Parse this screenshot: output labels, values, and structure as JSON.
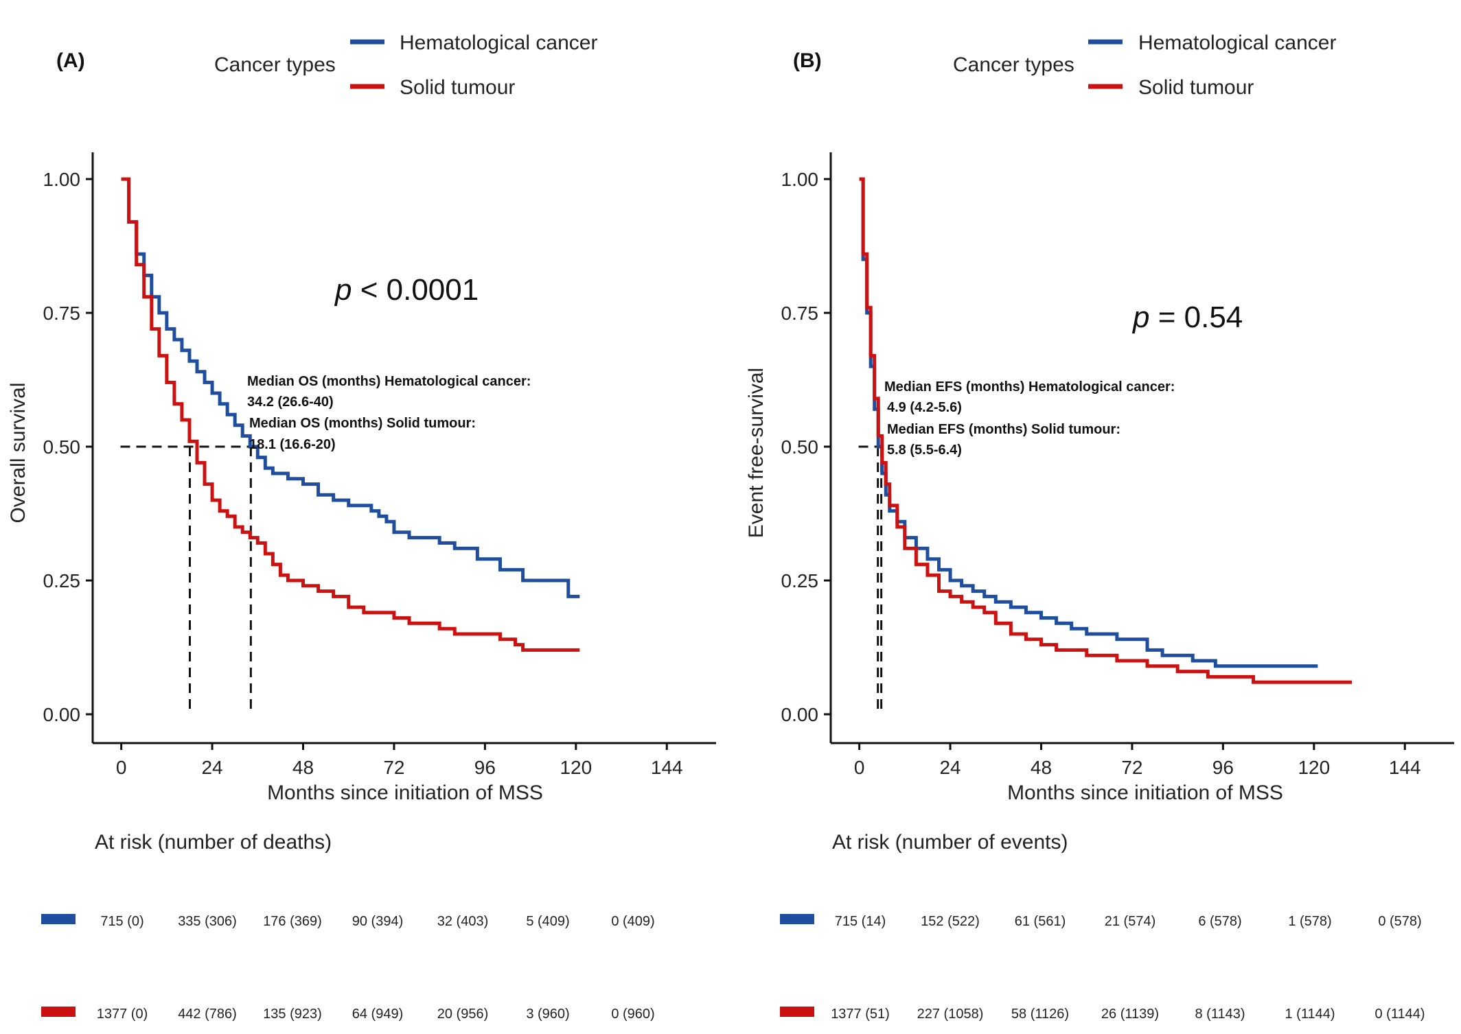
{
  "colors": {
    "hematological": "#1f4e9e",
    "solid": "#cc1111",
    "axis": "#111111",
    "median_line": "#111111"
  },
  "chart_data": [
    {
      "type": "line",
      "panel_label": "(A)",
      "legend_title": "Cancer types",
      "legend_position": "top",
      "xlabel": "Months since initiation of MSS",
      "ylabel": "Overall survival",
      "xticks": [
        0,
        24,
        48,
        72,
        96,
        120,
        144
      ],
      "yticks": [
        "0.00",
        "0.25",
        "0.50",
        "0.75",
        "1.00"
      ],
      "xlim": [
        -7,
        157
      ],
      "ylim": [
        -0.05,
        1.05
      ],
      "p_value": {
        "prefix": "p",
        "rest": " < 0.0001"
      },
      "annotation_lines": [
        "Median OS (months) Hematological cancer:",
        "34.2 (26.6-40)",
        "Median OS (months) Solid tumour:",
        "18.1 (16.6-20)"
      ],
      "medians": [
        34.2,
        18.1
      ],
      "series": [
        {
          "name": "Hematological cancer",
          "color_key": "hematological",
          "points": [
            [
              0,
              1.0
            ],
            [
              2,
              0.92
            ],
            [
              4,
              0.86
            ],
            [
              6,
              0.82
            ],
            [
              8,
              0.78
            ],
            [
              10,
              0.75
            ],
            [
              12,
              0.72
            ],
            [
              14,
              0.7
            ],
            [
              16,
              0.68
            ],
            [
              18,
              0.66
            ],
            [
              20,
              0.64
            ],
            [
              22,
              0.62
            ],
            [
              24,
              0.6
            ],
            [
              26,
              0.58
            ],
            [
              28,
              0.56
            ],
            [
              30,
              0.54
            ],
            [
              32,
              0.52
            ],
            [
              34,
              0.5
            ],
            [
              36,
              0.48
            ],
            [
              38,
              0.46
            ],
            [
              40,
              0.45
            ],
            [
              44,
              0.44
            ],
            [
              48,
              0.43
            ],
            [
              52,
              0.41
            ],
            [
              56,
              0.4
            ],
            [
              60,
              0.39
            ],
            [
              64,
              0.39
            ],
            [
              66,
              0.38
            ],
            [
              68,
              0.37
            ],
            [
              70,
              0.36
            ],
            [
              72,
              0.34
            ],
            [
              76,
              0.33
            ],
            [
              80,
              0.33
            ],
            [
              84,
              0.32
            ],
            [
              88,
              0.31
            ],
            [
              92,
              0.31
            ],
            [
              94,
              0.29
            ],
            [
              98,
              0.29
            ],
            [
              100,
              0.27
            ],
            [
              104,
              0.27
            ],
            [
              106,
              0.25
            ],
            [
              110,
              0.25
            ],
            [
              112,
              0.25
            ],
            [
              115,
              0.25
            ],
            [
              118,
              0.22
            ],
            [
              121,
              0.22
            ]
          ]
        },
        {
          "name": "Solid tumour",
          "color_key": "solid",
          "points": [
            [
              0,
              1.0
            ],
            [
              2,
              0.92
            ],
            [
              4,
              0.84
            ],
            [
              6,
              0.78
            ],
            [
              8,
              0.72
            ],
            [
              10,
              0.67
            ],
            [
              12,
              0.62
            ],
            [
              14,
              0.58
            ],
            [
              16,
              0.55
            ],
            [
              18,
              0.51
            ],
            [
              20,
              0.47
            ],
            [
              22,
              0.43
            ],
            [
              24,
              0.4
            ],
            [
              26,
              0.38
            ],
            [
              28,
              0.37
            ],
            [
              30,
              0.35
            ],
            [
              32,
              0.34
            ],
            [
              34,
              0.33
            ],
            [
              36,
              0.32
            ],
            [
              38,
              0.3
            ],
            [
              40,
              0.28
            ],
            [
              42,
              0.26
            ],
            [
              44,
              0.25
            ],
            [
              48,
              0.24
            ],
            [
              52,
              0.23
            ],
            [
              56,
              0.22
            ],
            [
              60,
              0.2
            ],
            [
              64,
              0.19
            ],
            [
              68,
              0.19
            ],
            [
              72,
              0.18
            ],
            [
              76,
              0.17
            ],
            [
              80,
              0.17
            ],
            [
              84,
              0.16
            ],
            [
              88,
              0.15
            ],
            [
              92,
              0.15
            ],
            [
              96,
              0.15
            ],
            [
              100,
              0.14
            ],
            [
              104,
              0.13
            ],
            [
              106,
              0.12
            ],
            [
              110,
              0.12
            ],
            [
              112,
              0.12
            ],
            [
              118,
              0.12
            ],
            [
              121,
              0.12
            ]
          ]
        }
      ],
      "risk_table": {
        "title": "At risk (number of deaths)",
        "rows": [
          {
            "series": "Hematological cancer",
            "color_key": "hematological",
            "values": [
              "715 (0)",
              "335 (306)",
              "176 (369)",
              "90 (394)",
              "32 (403)",
              "5 (409)",
              "0 (409)"
            ]
          },
          {
            "series": "Solid tumour",
            "color_key": "solid",
            "values": [
              "1377 (0)",
              "442 (786)",
              "135 (923)",
              "64 (949)",
              "20 (956)",
              "3 (960)",
              "0 (960)"
            ]
          }
        ]
      }
    },
    {
      "type": "line",
      "panel_label": "(B)",
      "legend_title": "Cancer types",
      "legend_position": "top",
      "xlabel": "Months since initiation of MSS",
      "ylabel": "Event free-survival",
      "xticks": [
        0,
        24,
        48,
        72,
        96,
        120,
        144
      ],
      "yticks": [
        "0.00",
        "0.25",
        "0.50",
        "0.75",
        "1.00"
      ],
      "xlim": [
        -7,
        157
      ],
      "ylim": [
        -0.05,
        1.05
      ],
      "p_value": {
        "prefix": "p",
        "rest": " = 0.54"
      },
      "annotation_lines": [
        "Median EFS (months) Hematological cancer:",
        "4.9 (4.2-5.6)",
        "Median EFS (months) Solid tumour:",
        "5.8 (5.5-6.4)"
      ],
      "medians": [
        4.9,
        5.8
      ],
      "series": [
        {
          "name": "Hematological cancer",
          "color_key": "hematological",
          "points": [
            [
              0,
              1.0
            ],
            [
              1,
              0.85
            ],
            [
              2,
              0.75
            ],
            [
              3,
              0.65
            ],
            [
              4,
              0.57
            ],
            [
              5,
              0.5
            ],
            [
              6,
              0.45
            ],
            [
              7,
              0.41
            ],
            [
              8,
              0.38
            ],
            [
              10,
              0.36
            ],
            [
              12,
              0.33
            ],
            [
              15,
              0.31
            ],
            [
              18,
              0.29
            ],
            [
              21,
              0.27
            ],
            [
              24,
              0.25
            ],
            [
              27,
              0.24
            ],
            [
              30,
              0.23
            ],
            [
              33,
              0.22
            ],
            [
              36,
              0.21
            ],
            [
              40,
              0.2
            ],
            [
              44,
              0.19
            ],
            [
              48,
              0.18
            ],
            [
              52,
              0.17
            ],
            [
              56,
              0.16
            ],
            [
              60,
              0.15
            ],
            [
              64,
              0.15
            ],
            [
              68,
              0.14
            ],
            [
              72,
              0.14
            ],
            [
              76,
              0.12
            ],
            [
              80,
              0.11
            ],
            [
              84,
              0.11
            ],
            [
              88,
              0.1
            ],
            [
              92,
              0.1
            ],
            [
              94,
              0.09
            ],
            [
              98,
              0.09
            ],
            [
              104,
              0.09
            ],
            [
              110,
              0.09
            ],
            [
              121,
              0.09
            ]
          ]
        },
        {
          "name": "Solid tumour",
          "color_key": "solid",
          "points": [
            [
              0,
              1.0
            ],
            [
              1,
              0.86
            ],
            [
              2,
              0.76
            ],
            [
              3,
              0.67
            ],
            [
              4,
              0.59
            ],
            [
              5,
              0.52
            ],
            [
              6,
              0.47
            ],
            [
              7,
              0.43
            ],
            [
              8,
              0.39
            ],
            [
              10,
              0.35
            ],
            [
              12,
              0.31
            ],
            [
              15,
              0.28
            ],
            [
              18,
              0.26
            ],
            [
              21,
              0.23
            ],
            [
              24,
              0.22
            ],
            [
              27,
              0.21
            ],
            [
              30,
              0.2
            ],
            [
              33,
              0.19
            ],
            [
              36,
              0.17
            ],
            [
              40,
              0.15
            ],
            [
              44,
              0.14
            ],
            [
              48,
              0.13
            ],
            [
              52,
              0.12
            ],
            [
              56,
              0.12
            ],
            [
              60,
              0.11
            ],
            [
              64,
              0.11
            ],
            [
              68,
              0.1
            ],
            [
              72,
              0.1
            ],
            [
              76,
              0.09
            ],
            [
              80,
              0.09
            ],
            [
              84,
              0.08
            ],
            [
              88,
              0.08
            ],
            [
              92,
              0.07
            ],
            [
              96,
              0.07
            ],
            [
              100,
              0.07
            ],
            [
              104,
              0.06
            ],
            [
              110,
              0.06
            ],
            [
              120,
              0.06
            ],
            [
              130,
              0.06
            ]
          ]
        }
      ],
      "risk_table": {
        "title": "At risk (number of events)",
        "rows": [
          {
            "series": "Hematological cancer",
            "color_key": "hematological",
            "values": [
              "715 (14)",
              "152 (522)",
              "61 (561)",
              "21 (574)",
              "6 (578)",
              "1 (578)",
              "0 (578)"
            ]
          },
          {
            "series": "Solid tumour",
            "color_key": "solid",
            "values": [
              "1377 (51)",
              "227 (1058)",
              "58 (1126)",
              "26 (1139)",
              "8 (1143)",
              "1 (1144)",
              "0 (1144)"
            ]
          }
        ]
      }
    }
  ]
}
